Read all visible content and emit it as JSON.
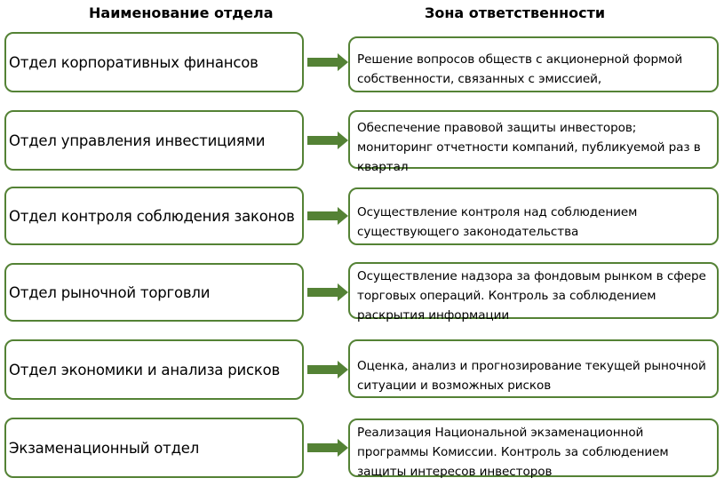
{
  "headers": {
    "left": "Наименование отдела",
    "right": "Зона ответственности"
  },
  "accent_color": "#548235",
  "rows": [
    {
      "department": "Отдел корпоративных финансов",
      "responsibility": "Решение вопросов обществ с акционерной формой собственности, связанных с эмиссией,"
    },
    {
      "department": "Отдел управления инвестициями",
      "responsibility": "Обеспечение правовой защиты инвесторов; мониторинг отчетности компаний, публикуемой раз в квартал"
    },
    {
      "department": "Отдел контроля соблюдения законов",
      "responsibility": "Осуществление контроля над соблюдением существующего законодательства"
    },
    {
      "department": "Отдел рыночной торговли",
      "responsibility": "Осуществление надзора за фондовым рынком в сфере торговых операций. Контроль за соблюдением раскрытия информации"
    },
    {
      "department": "Отдел экономики и анализа рисков",
      "responsibility": "Оценка, анализ и прогнозирование текущей рыночной ситуации и возможных рисков"
    },
    {
      "department": "Экзаменационный отдел",
      "responsibility": "Реализация Национальной экзаменационной программы Комиссии. Контроль за соблюдением защиты интересов инвесторов"
    }
  ]
}
